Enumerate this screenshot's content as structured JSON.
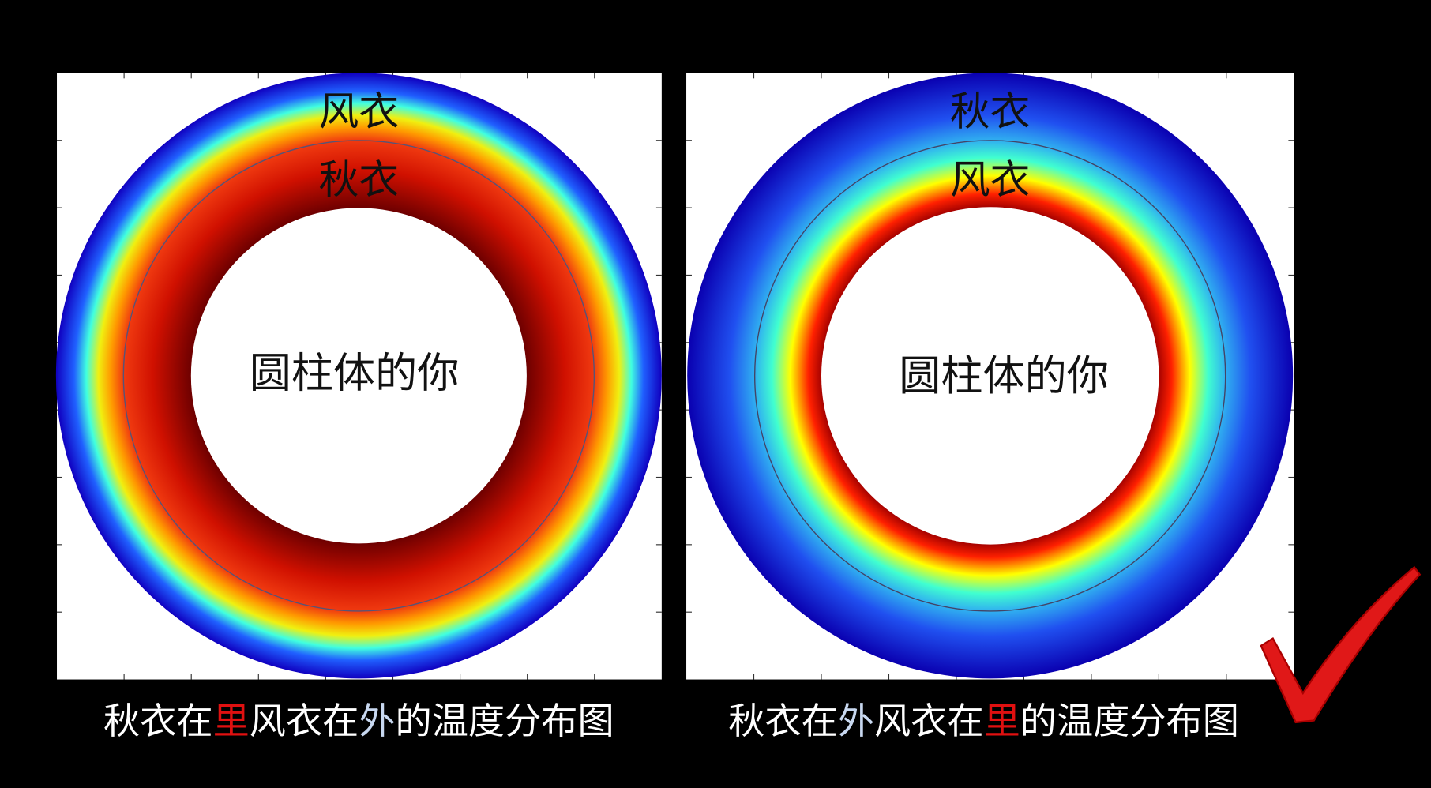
{
  "panels": [
    {
      "outer_layer": "风衣",
      "inner_layer": "秋衣",
      "center_label": "圆柱体的你",
      "caption": [
        "秋衣在",
        "里",
        "风衣在",
        "外",
        "的温度分布图"
      ]
    },
    {
      "outer_layer": "秋衣",
      "inner_layer": "风衣",
      "center_label": "圆柱体的你",
      "caption": [
        "秋衣在",
        "外",
        "风衣在",
        "里",
        "的温度分布图"
      ]
    }
  ]
}
